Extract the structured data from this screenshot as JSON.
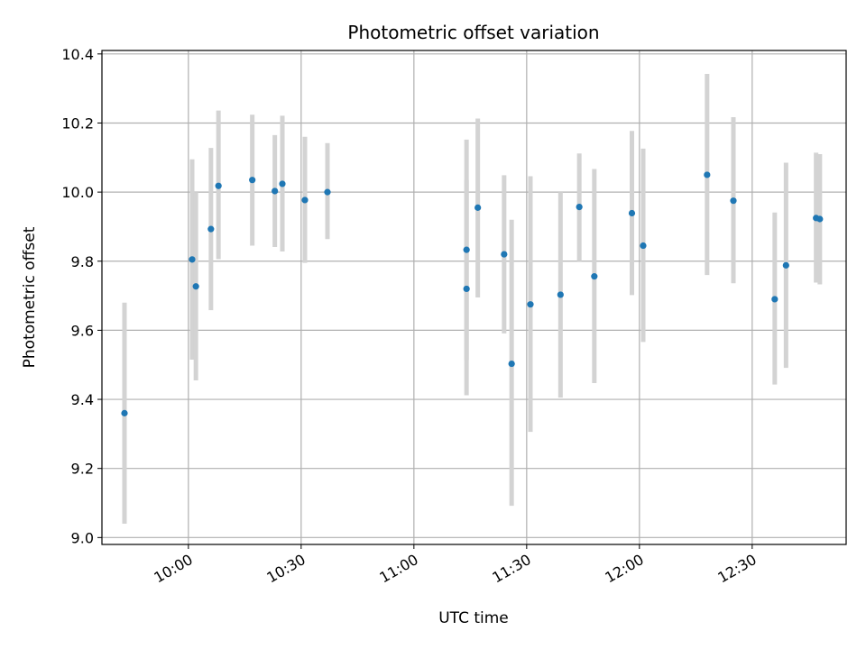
{
  "chart_data": {
    "type": "scatter",
    "title": "Photometric offset variation",
    "xlabel": "UTC time",
    "ylabel": "Photometric offset",
    "x_is_time": true,
    "xlim": [
      "09:37",
      "12:55"
    ],
    "ylim": [
      8.98,
      10.41
    ],
    "grid": true,
    "x_ticks": [
      "10:00",
      "10:30",
      "11:00",
      "11:30",
      "12:00",
      "12:30"
    ],
    "y_ticks": [
      9.0,
      9.2,
      9.4,
      9.6,
      9.8,
      10.0,
      10.2,
      10.4
    ],
    "y_tick_labels": [
      "9.0",
      "9.2",
      "9.4",
      "9.6",
      "9.8",
      "10.0",
      "10.2",
      "10.4"
    ],
    "colors": {
      "point": "#1f77b4",
      "errorbar": "#d3d3d3",
      "grid": "#b0b0b0"
    },
    "points": [
      {
        "t": "09:43",
        "y": 9.36,
        "low": 9.04,
        "high": 9.68
      },
      {
        "t": "10:01",
        "y": 9.805,
        "low": 9.515,
        "high": 10.095
      },
      {
        "t": "10:02",
        "y": 9.727,
        "low": 9.455,
        "high": 10.0
      },
      {
        "t": "10:06",
        "y": 9.893,
        "low": 9.658,
        "high": 10.128
      },
      {
        "t": "10:08",
        "y": 10.018,
        "low": 9.806,
        "high": 10.236
      },
      {
        "t": "10:17",
        "y": 10.035,
        "low": 9.845,
        "high": 10.224
      },
      {
        "t": "10:23",
        "y": 10.003,
        "low": 9.841,
        "high": 10.165
      },
      {
        "t": "10:25",
        "y": 10.024,
        "low": 9.828,
        "high": 10.221
      },
      {
        "t": "10:31",
        "y": 9.977,
        "low": 9.795,
        "high": 10.16
      },
      {
        "t": "10:37",
        "y": 10.0,
        "low": 9.864,
        "high": 10.142
      },
      {
        "t": "11:14",
        "y": 9.72,
        "low": 9.412,
        "high": 10.035
      },
      {
        "t": "11:14",
        "y": 9.833,
        "low": 9.514,
        "high": 10.152
      },
      {
        "t": "11:17",
        "y": 9.955,
        "low": 9.695,
        "high": 10.213
      },
      {
        "t": "11:24",
        "y": 9.82,
        "low": 9.591,
        "high": 10.049
      },
      {
        "t": "11:26",
        "y": 9.503,
        "low": 9.092,
        "high": 9.92
      },
      {
        "t": "11:31",
        "y": 9.675,
        "low": 9.306,
        "high": 10.046
      },
      {
        "t": "11:39",
        "y": 9.703,
        "low": 9.405,
        "high": 10.0
      },
      {
        "t": "11:44",
        "y": 9.957,
        "low": 9.8,
        "high": 10.112
      },
      {
        "t": "11:48",
        "y": 9.756,
        "low": 9.447,
        "high": 10.067
      },
      {
        "t": "11:58",
        "y": 9.939,
        "low": 9.702,
        "high": 10.177
      },
      {
        "t": "12:01",
        "y": 9.845,
        "low": 9.566,
        "high": 10.126
      },
      {
        "t": "12:18",
        "y": 10.05,
        "low": 9.76,
        "high": 10.342
      },
      {
        "t": "12:25",
        "y": 9.975,
        "low": 9.736,
        "high": 10.217
      },
      {
        "t": "12:36",
        "y": 9.69,
        "low": 9.443,
        "high": 9.941
      },
      {
        "t": "12:39",
        "y": 9.788,
        "low": 9.491,
        "high": 10.085
      },
      {
        "t": "12:47",
        "y": 9.925,
        "low": 9.738,
        "high": 10.114
      },
      {
        "t": "12:48",
        "y": 9.922,
        "low": 9.733,
        "high": 10.11
      }
    ]
  }
}
